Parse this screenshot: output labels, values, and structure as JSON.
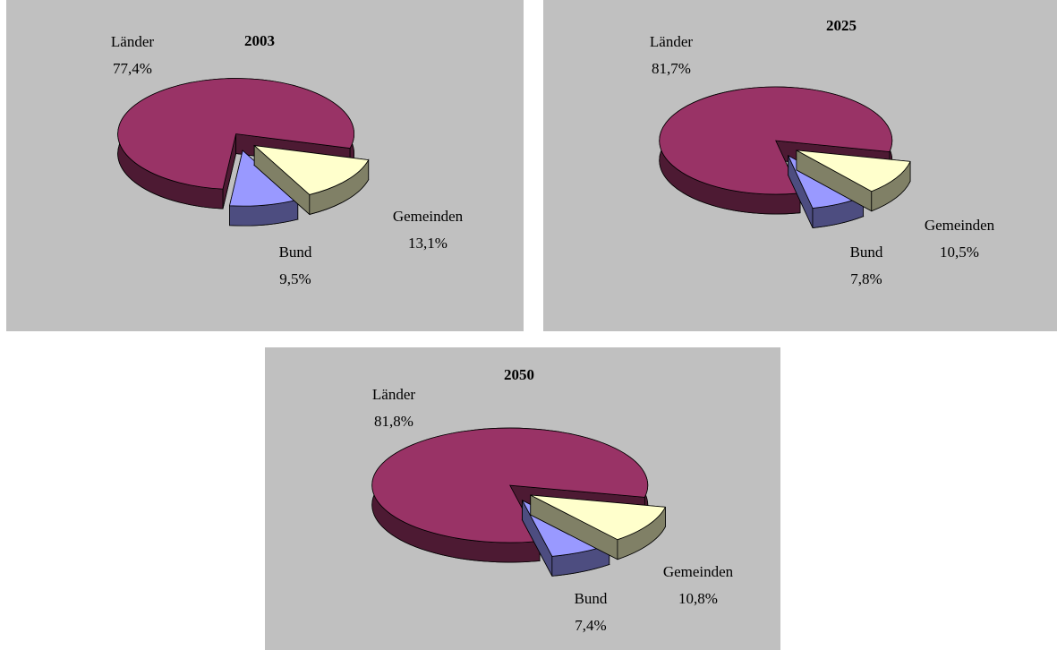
{
  "chart_data": [
    {
      "type": "pie",
      "title": "2003",
      "categories": [
        "Länder",
        "Bund",
        "Gemeinden"
      ],
      "values": [
        77.4,
        9.5,
        13.1
      ],
      "value_labels": [
        "77,4%",
        "9,5%",
        "13,1%"
      ],
      "colors": [
        "#993366",
        "#9999ff",
        "#ffffcc"
      ]
    },
    {
      "type": "pie",
      "title": "2025",
      "categories": [
        "Länder",
        "Bund",
        "Gemeinden"
      ],
      "values": [
        81.7,
        7.8,
        10.5
      ],
      "value_labels": [
        "81,7%",
        "7,8%",
        "10,5%"
      ],
      "colors": [
        "#993366",
        "#9999ff",
        "#ffffcc"
      ]
    },
    {
      "type": "pie",
      "title": "2050",
      "categories": [
        "Länder",
        "Bund",
        "Gemeinden"
      ],
      "values": [
        81.8,
        7.4,
        10.8
      ],
      "value_labels": [
        "81,8%",
        "7,4%",
        "10,8%"
      ],
      "colors": [
        "#993366",
        "#9999ff",
        "#ffffcc"
      ]
    }
  ]
}
